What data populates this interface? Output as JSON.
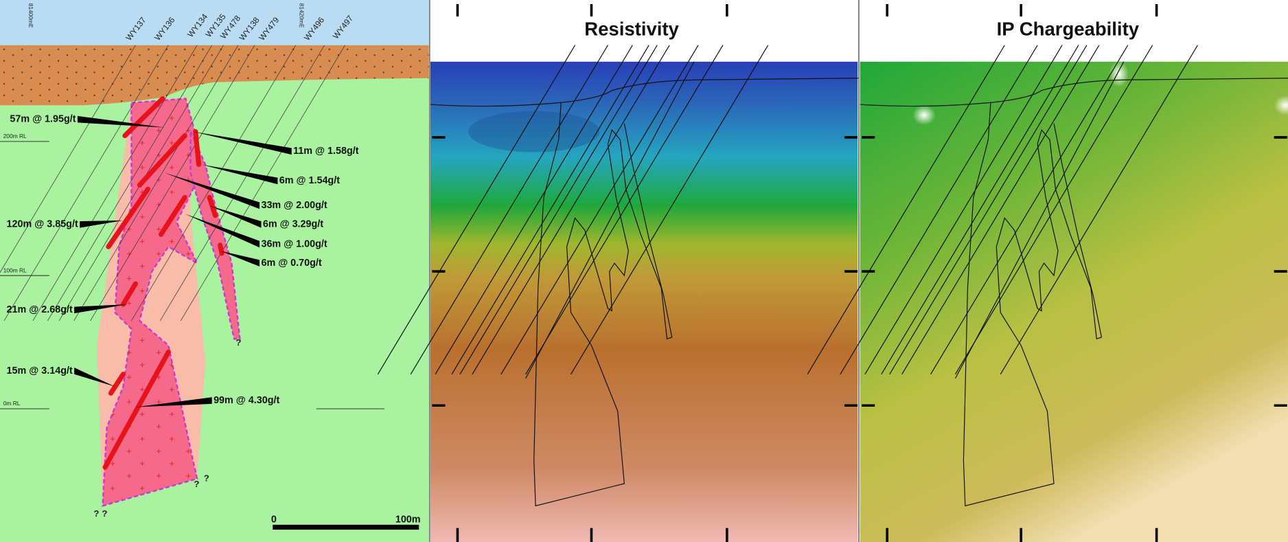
{
  "section": {
    "eastings": [
      "81400mE",
      "81420mE"
    ],
    "holes": [
      "WY137",
      "WY136",
      "WY134",
      "WY135",
      "WY478",
      "WY138",
      "WY479",
      "WY496",
      "WY497"
    ],
    "rl_labels": [
      "200m RL",
      "100m RL",
      "0m RL"
    ],
    "intercepts": [
      "57m @ 1.95g/t",
      "11m @ 1.58g/t",
      "6m @ 1.54g/t",
      "33m @ 2.00g/t",
      "6m @ 3.29g/t",
      "36m @ 1.00g/t",
      "6m @ 0.70g/t",
      "120m @ 3.85g/t",
      "21m @ 2.68g/t",
      "15m @ 3.14g/t",
      "99m @ 4.30g/t"
    ],
    "question_marks": [
      "?",
      "?",
      "?",
      "?",
      "?"
    ],
    "scale_bar": [
      "0",
      "100m"
    ]
  },
  "resistivity": {
    "title": "Resistivity"
  },
  "chargeability": {
    "title": "IP Chargeability"
  }
}
